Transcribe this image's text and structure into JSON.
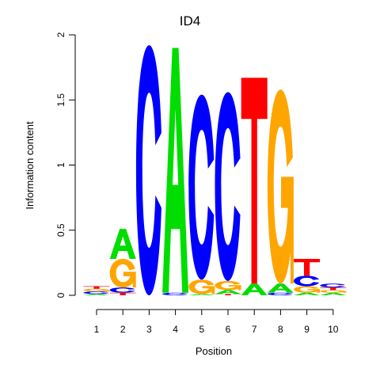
{
  "chart_data": {
    "type": "sequence-logo",
    "title": "ID4",
    "xlabel": "Position",
    "ylabel": "Information content",
    "ylim": [
      0,
      2
    ],
    "yticks": [
      "0",
      "0.5",
      "1",
      "1.5",
      "2"
    ],
    "positions": [
      "1",
      "2",
      "3",
      "4",
      "5",
      "6",
      "7",
      "8",
      "9",
      "10"
    ],
    "colors": {
      "A": "#00dd00",
      "C": "#0000ff",
      "G": "#ffa500",
      "T": "#ff0000"
    },
    "stacks": [
      [
        {
          "letter": "A",
          "height": 0.01
        },
        {
          "letter": "C",
          "height": 0.02
        },
        {
          "letter": "G",
          "height": 0.02
        },
        {
          "letter": "T",
          "height": 0.02
        }
      ],
      [
        {
          "letter": "T",
          "height": 0.02
        },
        {
          "letter": "C",
          "height": 0.04
        },
        {
          "letter": "G",
          "height": 0.22
        },
        {
          "letter": "A",
          "height": 0.23
        }
      ],
      [
        {
          "letter": "C",
          "height": 1.92
        }
      ],
      [
        {
          "letter": "C",
          "height": 0.02
        },
        {
          "letter": "A",
          "height": 1.88
        }
      ],
      [
        {
          "letter": "A",
          "height": 0.01
        },
        {
          "letter": "G",
          "height": 0.11
        },
        {
          "letter": "C",
          "height": 1.42
        }
      ],
      [
        {
          "letter": "T",
          "height": 0.01
        },
        {
          "letter": "A",
          "height": 0.03
        },
        {
          "letter": "G",
          "height": 0.07
        },
        {
          "letter": "C",
          "height": 1.45
        }
      ],
      [
        {
          "letter": "A",
          "height": 0.09
        },
        {
          "letter": "T",
          "height": 1.58
        }
      ],
      [
        {
          "letter": "C",
          "height": 0.02
        },
        {
          "letter": "A",
          "height": 0.07
        },
        {
          "letter": "G",
          "height": 1.49
        }
      ],
      [
        {
          "letter": "A",
          "height": 0.02
        },
        {
          "letter": "G",
          "height": 0.05
        },
        {
          "letter": "C",
          "height": 0.08
        },
        {
          "letter": "T",
          "height": 0.13
        }
      ],
      [
        {
          "letter": "A",
          "height": 0.02
        },
        {
          "letter": "G",
          "height": 0.02
        },
        {
          "letter": "T",
          "height": 0.02
        },
        {
          "letter": "C",
          "height": 0.03
        }
      ]
    ]
  }
}
